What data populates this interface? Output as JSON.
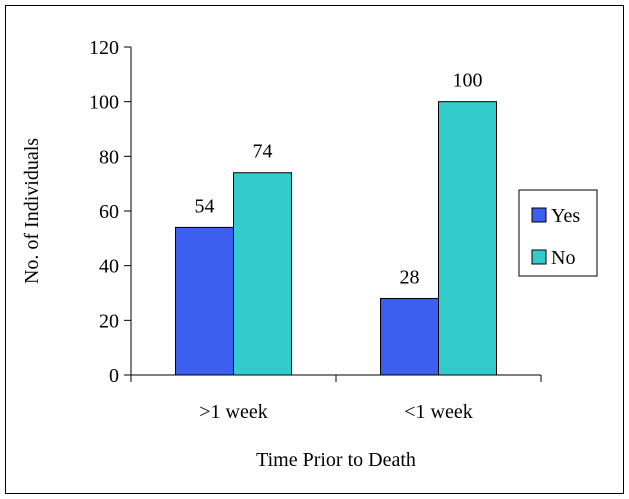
{
  "chart_data": {
    "type": "bar",
    "title": "",
    "xlabel": "Time Prior to Death",
    "ylabel": "No. of Individuals",
    "categories": [
      ">1 week",
      "<1 week"
    ],
    "ylim": [
      0,
      120
    ],
    "yticks": [
      0,
      20,
      40,
      60,
      80,
      100,
      120
    ],
    "grid": false,
    "legend_position": "right",
    "series": [
      {
        "name": "Yes",
        "values": [
          54,
          28
        ],
        "color": "#3c5ff0"
      },
      {
        "name": "No",
        "values": [
          74,
          100
        ],
        "color": "#33cccc"
      }
    ],
    "data_labels": [
      [
        "54",
        "28"
      ],
      [
        "74",
        "100"
      ]
    ]
  }
}
